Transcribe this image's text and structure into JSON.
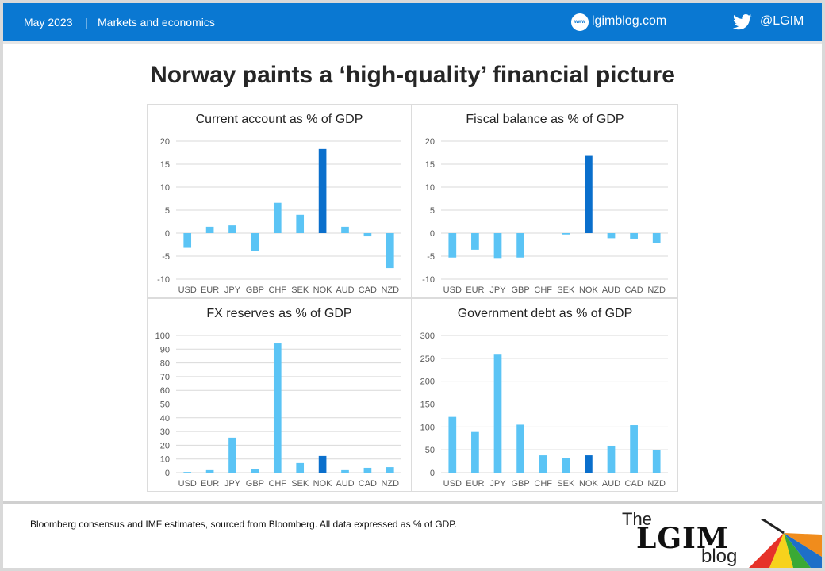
{
  "header": {
    "date": "May 2023",
    "separator": "|",
    "section": "Markets and economics",
    "website": "lgimblog.com",
    "website_icon_text": "www",
    "twitter_handle": "@LGIM",
    "bg_color": "#0a78d2"
  },
  "page_title": "Norway paints a ‘high-quality’ financial picture",
  "footnote": "Bloomberg consensus and IMF estimates, sourced from Bloomberg.  All data expressed as % of GDP.",
  "logo": {
    "the": "The",
    "lgim": "LGIM",
    "blog": "blog"
  },
  "colors": {
    "bar_default": "#5bc4f5",
    "bar_highlight": "#0a6fcc",
    "gridline": "#d9d9d9"
  },
  "chart_data": [
    {
      "type": "bar",
      "title": "Current account as % of GDP",
      "categories": [
        "USD",
        "EUR",
        "JPY",
        "GBP",
        "CHF",
        "SEK",
        "NOK",
        "AUD",
        "CAD",
        "NZD"
      ],
      "values": [
        -3.2,
        1.4,
        1.7,
        -3.9,
        6.6,
        4.0,
        18.3,
        1.4,
        -0.7,
        -7.6
      ],
      "highlight": "NOK",
      "ylim": [
        -10,
        20
      ],
      "yticks": [
        20,
        15,
        10,
        5,
        0,
        -5,
        -10
      ],
      "grid": true
    },
    {
      "type": "bar",
      "title": "Fiscal balance as % of GDP",
      "categories": [
        "USD",
        "EUR",
        "JPY",
        "GBP",
        "CHF",
        "SEK",
        "NOK",
        "AUD",
        "CAD",
        "NZD"
      ],
      "values": [
        -5.3,
        -3.6,
        -5.4,
        -5.3,
        0.0,
        -0.3,
        16.8,
        -1.1,
        -1.2,
        -2.1
      ],
      "highlight": "NOK",
      "ylim": [
        -10,
        20
      ],
      "yticks": [
        20,
        15,
        10,
        5,
        0,
        -5,
        -10
      ],
      "grid": true
    },
    {
      "type": "bar",
      "title": "FX reserves as % of GDP",
      "categories": [
        "USD",
        "EUR",
        "JPY",
        "GBP",
        "CHF",
        "SEK",
        "NOK",
        "AUD",
        "CAD",
        "NZD"
      ],
      "values": [
        0.5,
        1.8,
        25.5,
        2.8,
        94.2,
        7.0,
        12.2,
        1.8,
        3.5,
        4.0
      ],
      "highlight": "NOK",
      "ylim": [
        0,
        100
      ],
      "yticks": [
        100,
        90,
        80,
        70,
        60,
        50,
        40,
        30,
        20,
        10,
        0
      ],
      "grid": true
    },
    {
      "type": "bar",
      "title": "Government debt as % of GDP",
      "categories": [
        "USD",
        "EUR",
        "JPY",
        "GBP",
        "CHF",
        "SEK",
        "NOK",
        "AUD",
        "CAD",
        "NZD"
      ],
      "values": [
        122,
        89,
        258,
        105,
        38,
        32,
        38,
        59,
        104,
        50
      ],
      "highlight": "NOK",
      "ylim": [
        0,
        300
      ],
      "yticks": [
        300,
        250,
        200,
        150,
        100,
        50,
        0
      ],
      "grid": true
    }
  ]
}
